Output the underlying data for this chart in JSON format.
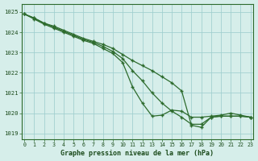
{
  "title": "Graphe pression niveau de la mer (hPa)",
  "bg_color": "#d6eeea",
  "grid_color": "#9ecece",
  "line_color": "#2d6b2d",
  "xlim": [
    -0.3,
    23.3
  ],
  "ylim": [
    1018.7,
    1025.4
  ],
  "yticks": [
    1019,
    1020,
    1021,
    1022,
    1023,
    1024,
    1025
  ],
  "xticks": [
    0,
    1,
    2,
    3,
    4,
    5,
    6,
    7,
    8,
    9,
    10,
    11,
    12,
    13,
    14,
    15,
    16,
    17,
    18,
    19,
    20,
    21,
    22,
    23
  ],
  "series": [
    [
      1024.9,
      1024.7,
      1024.45,
      1024.3,
      1024.1,
      1023.9,
      1023.7,
      1023.55,
      1023.4,
      1023.2,
      1022.9,
      1022.6,
      1022.35,
      1022.1,
      1021.8,
      1021.5,
      1021.1,
      1019.4,
      1019.3,
      1019.8,
      1019.85,
      1019.85,
      1019.85,
      1019.8
    ],
    [
      1024.9,
      1024.7,
      1024.45,
      1024.25,
      1024.05,
      1023.85,
      1023.65,
      1023.5,
      1023.3,
      1023.05,
      1022.7,
      1022.1,
      1021.6,
      1021.0,
      1020.5,
      1020.1,
      1019.8,
      1019.45,
      1019.45,
      1019.8,
      1019.85,
      1019.85,
      1019.85,
      1019.8
    ],
    [
      1024.9,
      1024.65,
      1024.4,
      1024.2,
      1024.0,
      1023.8,
      1023.6,
      1023.45,
      1023.2,
      1022.95,
      1022.5,
      1021.3,
      1020.5,
      1019.85,
      1019.9,
      1020.15,
      1020.1,
      1019.8,
      1019.8,
      1019.85,
      1019.9,
      1020.0,
      1019.9,
      1019.8
    ]
  ]
}
